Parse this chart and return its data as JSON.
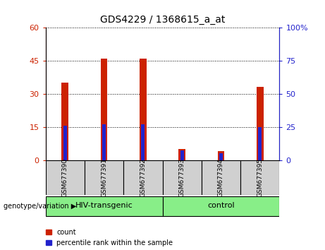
{
  "title": "GDS4229 / 1368615_a_at",
  "samples": [
    "GSM677390",
    "GSM677391",
    "GSM677392",
    "GSM677393",
    "GSM677394",
    "GSM677395"
  ],
  "count_values": [
    35,
    46,
    46,
    5,
    4,
    33
  ],
  "percentile_values": [
    15.6,
    16.2,
    16.2,
    4.2,
    3.0,
    15.0
  ],
  "left_ylim": [
    0,
    60
  ],
  "right_ylim": [
    0,
    100
  ],
  "left_yticks": [
    0,
    15,
    30,
    45,
    60
  ],
  "right_yticks": [
    0,
    25,
    50,
    75,
    100
  ],
  "count_color": "#cc2200",
  "percentile_color": "#2222cc",
  "red_bar_width": 0.18,
  "blue_bar_width": 0.09,
  "groups": [
    {
      "label": "HIV-transgenic",
      "indices": [
        0,
        1,
        2
      ],
      "color": "#88ee88"
    },
    {
      "label": "control",
      "indices": [
        3,
        4,
        5
      ],
      "color": "#88ee88"
    }
  ],
  "group_label_prefix": "genotype/variation ▶",
  "legend_count": "count",
  "legend_percentile": "percentile rank within the sample",
  "grid_color": "black",
  "axis_label_color_left": "#cc2200",
  "axis_label_color_right": "#2222cc",
  "sample_box_color": "#d0d0d0",
  "fig_bg": "#ffffff"
}
